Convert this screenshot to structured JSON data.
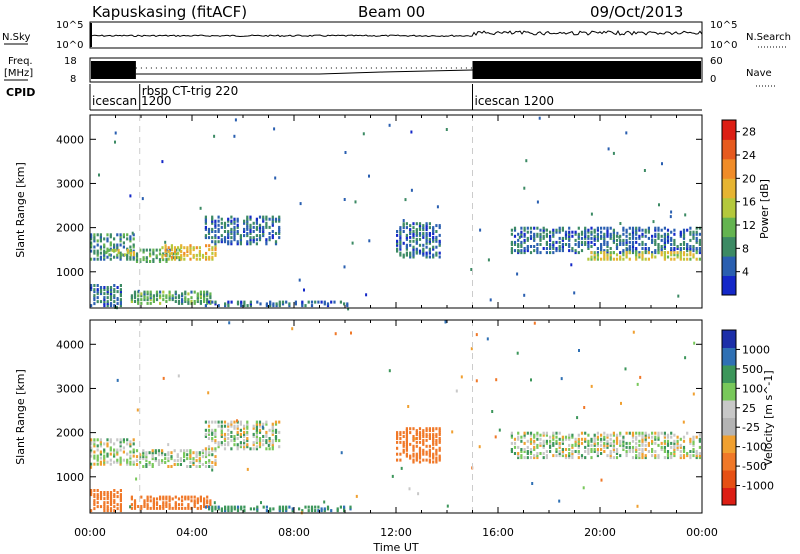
{
  "header": {
    "station": "Kapuskasing (fitACF)",
    "beam": "Beam 00",
    "date": "09/Oct/2013"
  },
  "strip_labels": {
    "nsky": "N.Sky",
    "nsky_ticks": [
      "10^5",
      "10^0"
    ],
    "nsearch": "N.Search",
    "nsearch_ticks": [
      "10^5",
      "10^0"
    ],
    "freq_top": "Freq.",
    "freq_bottom": "[MHz]",
    "freq_ticks": [
      "18",
      "8"
    ],
    "nave": "Nave",
    "nave_ticks": [
      "60",
      "0"
    ],
    "cpid": "CPID"
  },
  "cpid_segments": [
    {
      "label": "icescan  1200",
      "start": 0.0
    },
    {
      "label": "rbsp CT-trig 220",
      "start": 1.95
    },
    {
      "label": "icescan  1200",
      "start": 15.0
    }
  ],
  "colors": {
    "power": [
      "#1428c8",
      "#2a5fb0",
      "#3c8a64",
      "#64b450",
      "#b4c83c",
      "#e6b432",
      "#f08c28",
      "#e65a1e",
      "#dc1e14"
    ],
    "velocity": [
      "#1c2ea8",
      "#2f70b4",
      "#3c965a",
      "#78c85a",
      "#c8c8c8",
      "#b4b4b4",
      "#f0a030",
      "#f07828",
      "#e65014",
      "#dc1e14"
    ],
    "marker": "#cccccc"
  },
  "chart_data": [
    {
      "type": "heatmap",
      "panel": "power",
      "title": "",
      "xlabel": "",
      "ylabel": "Slant Range [km]",
      "xlim": [
        0,
        24
      ],
      "ylim": [
        180,
        4550
      ],
      "xticks": [
        "00:00",
        "04:00",
        "08:00",
        "12:00",
        "16:00",
        "20:00",
        "00:00"
      ],
      "yticks": [
        1000,
        2000,
        3000,
        4000
      ],
      "colorbar": {
        "label": "Power [dB]",
        "ticks": [
          4,
          8,
          12,
          16,
          20,
          24,
          28
        ],
        "range": [
          0,
          30
        ]
      },
      "series": [
        {
          "t0": 0.0,
          "t1": 1.8,
          "r0": 1250,
          "r1": 1850,
          "value": 8
        },
        {
          "t0": 0.0,
          "t1": 1.3,
          "r0": 200,
          "r1": 700,
          "value": 6
        },
        {
          "t0": 0.6,
          "t1": 1.8,
          "r0": 1350,
          "r1": 1500,
          "value": 14
        },
        {
          "t0": 1.8,
          "t1": 3.6,
          "r0": 1200,
          "r1": 1500,
          "value": 10
        },
        {
          "t0": 2.8,
          "t1": 5.0,
          "r0": 1250,
          "r1": 1600,
          "value": 18
        },
        {
          "t0": 4.5,
          "t1": 7.5,
          "r0": 1600,
          "r1": 2250,
          "value": 6
        },
        {
          "t0": 1.6,
          "t1": 4.8,
          "r0": 250,
          "r1": 550,
          "value": 10
        },
        {
          "t0": 4.5,
          "t1": 10.3,
          "r0": 200,
          "r1": 320,
          "value": 6
        },
        {
          "t0": 12.0,
          "t1": 13.8,
          "r0": 1300,
          "r1": 2100,
          "value": 6
        },
        {
          "t0": 16.5,
          "t1": 24.0,
          "r0": 1400,
          "r1": 2000,
          "value": 6
        },
        {
          "t0": 19.5,
          "t1": 24.0,
          "r0": 1250,
          "r1": 1450,
          "value": 16
        }
      ]
    },
    {
      "type": "heatmap",
      "panel": "velocity",
      "title": "",
      "xlabel": "Time UT",
      "ylabel": "Slant Range [km]",
      "xlim": [
        0,
        24
      ],
      "ylim": [
        180,
        4550
      ],
      "xticks": [
        "00:00",
        "04:00",
        "08:00",
        "12:00",
        "16:00",
        "20:00",
        "00:00"
      ],
      "yticks": [
        1000,
        2000,
        3000,
        4000
      ],
      "colorbar": {
        "label": "Velocity [m s^-1]",
        "ticks": [
          "1000",
          "500",
          "100",
          "25",
          "-25",
          "-100",
          "-500",
          "-1000"
        ]
      },
      "series": [
        {
          "t0": 0.0,
          "t1": 1.8,
          "r0": 1250,
          "r1": 1850,
          "value": 0
        },
        {
          "t0": 0.0,
          "t1": 1.3,
          "r0": 200,
          "r1": 700,
          "value": -300
        },
        {
          "t0": 1.8,
          "t1": 5.0,
          "r0": 1200,
          "r1": 1600,
          "value": 0
        },
        {
          "t0": 4.5,
          "t1": 7.5,
          "r0": 1600,
          "r1": 2250,
          "value": 0
        },
        {
          "t0": 1.6,
          "t1": 4.8,
          "r0": 250,
          "r1": 550,
          "value": -200
        },
        {
          "t0": 4.5,
          "t1": 10.3,
          "r0": 200,
          "r1": 320,
          "value": 80
        },
        {
          "t0": 12.0,
          "t1": 13.8,
          "r0": 1300,
          "r1": 2100,
          "value": -150
        },
        {
          "t0": 16.5,
          "t1": 24.0,
          "r0": 1400,
          "r1": 2000,
          "value": 0
        }
      ]
    }
  ]
}
